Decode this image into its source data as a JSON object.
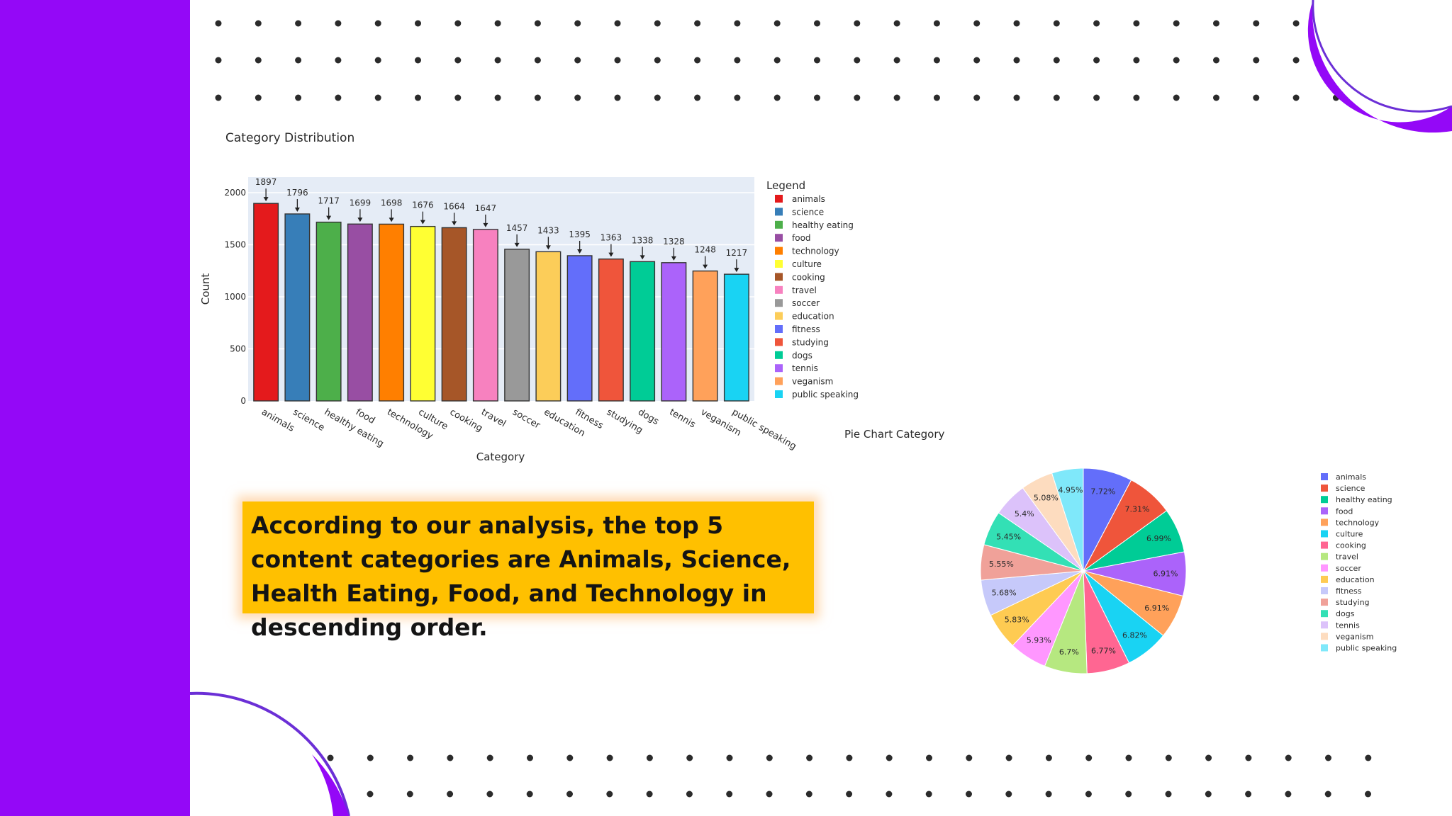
{
  "slide": {
    "callout_text": "According to our analysis, the top 5 content categories are Animals, Science, Health Eating, Food, and Technology in descending order."
  },
  "chart_data": [
    {
      "type": "bar",
      "title": "Category Distribution",
      "xlabel": "Category",
      "ylabel": "Count",
      "ylim": [
        0,
        2150
      ],
      "yticks": [
        0,
        500,
        1000,
        1500,
        2000
      ],
      "legend_title": "Legend",
      "legend_position": "right",
      "categories": [
        "animals",
        "science",
        "healthy eating",
        "food",
        "technology",
        "culture",
        "cooking",
        "travel",
        "soccer",
        "education",
        "fitness",
        "studying",
        "dogs",
        "tennis",
        "veganism",
        "public speaking"
      ],
      "values": [
        1897,
        1796,
        1717,
        1699,
        1698,
        1676,
        1664,
        1647,
        1457,
        1433,
        1395,
        1363,
        1338,
        1328,
        1248,
        1217
      ],
      "colors": [
        "#e41a1c",
        "#377eb8",
        "#4daf4a",
        "#984ea3",
        "#ff7f00",
        "#ffff33",
        "#a65628",
        "#f781bf",
        "#999999",
        "#fccd59",
        "#636efa",
        "#ef553b",
        "#00cc96",
        "#ab63fa",
        "#ffa15a",
        "#19d3f3"
      ]
    },
    {
      "type": "pie",
      "title": "Pie Chart Category",
      "legend_position": "right",
      "labels": [
        "animals",
        "science",
        "healthy eating",
        "food",
        "technology",
        "culture",
        "cooking",
        "travel",
        "soccer",
        "education",
        "fitness",
        "studying",
        "dogs",
        "tennis",
        "veganism",
        "public speaking"
      ],
      "values": [
        7.72,
        7.31,
        6.99,
        6.91,
        6.91,
        6.82,
        6.77,
        6.7,
        5.93,
        5.83,
        5.68,
        5.55,
        5.45,
        5.4,
        5.08,
        4.95
      ],
      "label_texts": [
        "7.72%",
        "7.31%",
        "6.99%",
        "6.91%",
        "6.91%",
        "6.82%",
        "6.77%",
        "6.7%",
        "5.93%",
        "5.83%",
        "5.68%",
        "5.55%",
        "5.45%",
        "5.4%",
        "5.08%",
        "4.95%"
      ],
      "colors": [
        "#636efa",
        "#ef553b",
        "#00cc96",
        "#ab63fa",
        "#ffa15a",
        "#19d3f3",
        "#ff6692",
        "#b6e880",
        "#ff97ff",
        "#fecb52",
        "#c6c9fa",
        "#f0a199",
        "#33e0b5",
        "#dcc2fa",
        "#fddcbf",
        "#7fe8fa"
      ]
    }
  ]
}
